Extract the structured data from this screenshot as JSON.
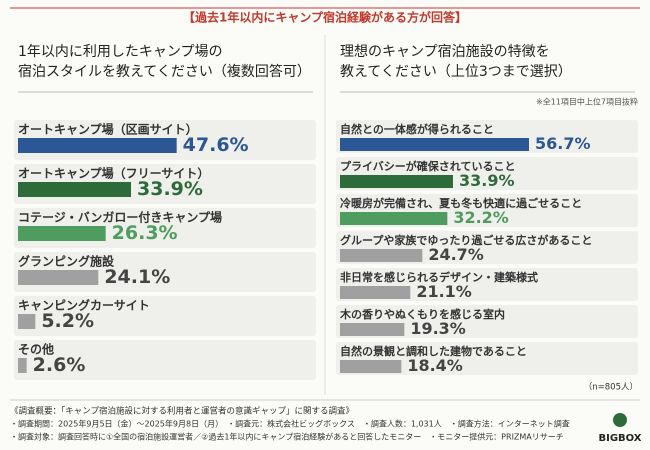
{
  "header": "【過去1年以内にキャンプ宿泊経験がある方が回答】",
  "chart_data": [
    {
      "type": "hbar",
      "title": [
        "1年以内に利用したキャンプ場の",
        "宿泊スタイルを教えてください（複数回答可）"
      ],
      "categories": [
        "オートキャンプ場（区画サイト）",
        "オートキャンプ場（フリーサイト）",
        "コテージ・バンガロー付きキャンプ場",
        "グランピング施設",
        "キャンピングカーサイト",
        "その他"
      ],
      "values": [
        47.6,
        33.9,
        26.3,
        24.1,
        5.2,
        2.6
      ],
      "value_labels": [
        "47.6%",
        "33.9%",
        "26.3%",
        "24.1%",
        "5.2%",
        "2.6%"
      ],
      "colors": [
        "#2b5797",
        "#2e6b3a",
        "#4e9d5e",
        "#a0a0a0",
        "#a0a0a0",
        "#a0a0a0"
      ],
      "xlim": [
        0,
        60
      ]
    },
    {
      "type": "hbar",
      "title": [
        "理想のキャンプ宿泊施設の特徴を",
        "教えてください（上位3つまで選択）"
      ],
      "note": "※全11項目中上位7項目抜粋",
      "sample": "（n=805人）",
      "categories": [
        "自然との一体感が得られること",
        "プライバシーが確保されていること",
        "冷暖房が完備され、夏も冬も快適に過ごせること",
        "グループや家族でゆったり過ごせる広さがあること",
        "非日常を感じられるデザイン・建築様式",
        "木の香りやぬくもりを感じる室内",
        "自然の景観と調和した建物であること"
      ],
      "values": [
        56.7,
        33.9,
        32.2,
        24.7,
        21.1,
        19.3,
        18.4
      ],
      "value_labels": [
        "56.7%",
        "33.9%",
        "32.2%",
        "24.7%",
        "21.1%",
        "19.3%",
        "18.4%"
      ],
      "colors": [
        "#2b5797",
        "#2e6b3a",
        "#4e9d5e",
        "#a0a0a0",
        "#a0a0a0",
        "#a0a0a0",
        "#a0a0a0"
      ],
      "xlim": [
        0,
        60
      ]
    }
  ],
  "footer": [
    "《調査概要：「キャンプ宿泊施設に対する利用者と運営者の意識ギャップ」に関する調査》",
    "・調査期間：2025年9月5日（金）〜2025年9月8日（月）　・調査元：株式会社ビッグボックス　・調査人数：1,031人　・調査方法：インターネット調査",
    "・調査対象：調査回答時に①全国の宿泊施設運営者／②過去1年以内にキャンプ宿泊経験があると回答したモニター　・モニター提供元：PRIZMAリサーチ"
  ],
  "logo": "BIGBOX"
}
